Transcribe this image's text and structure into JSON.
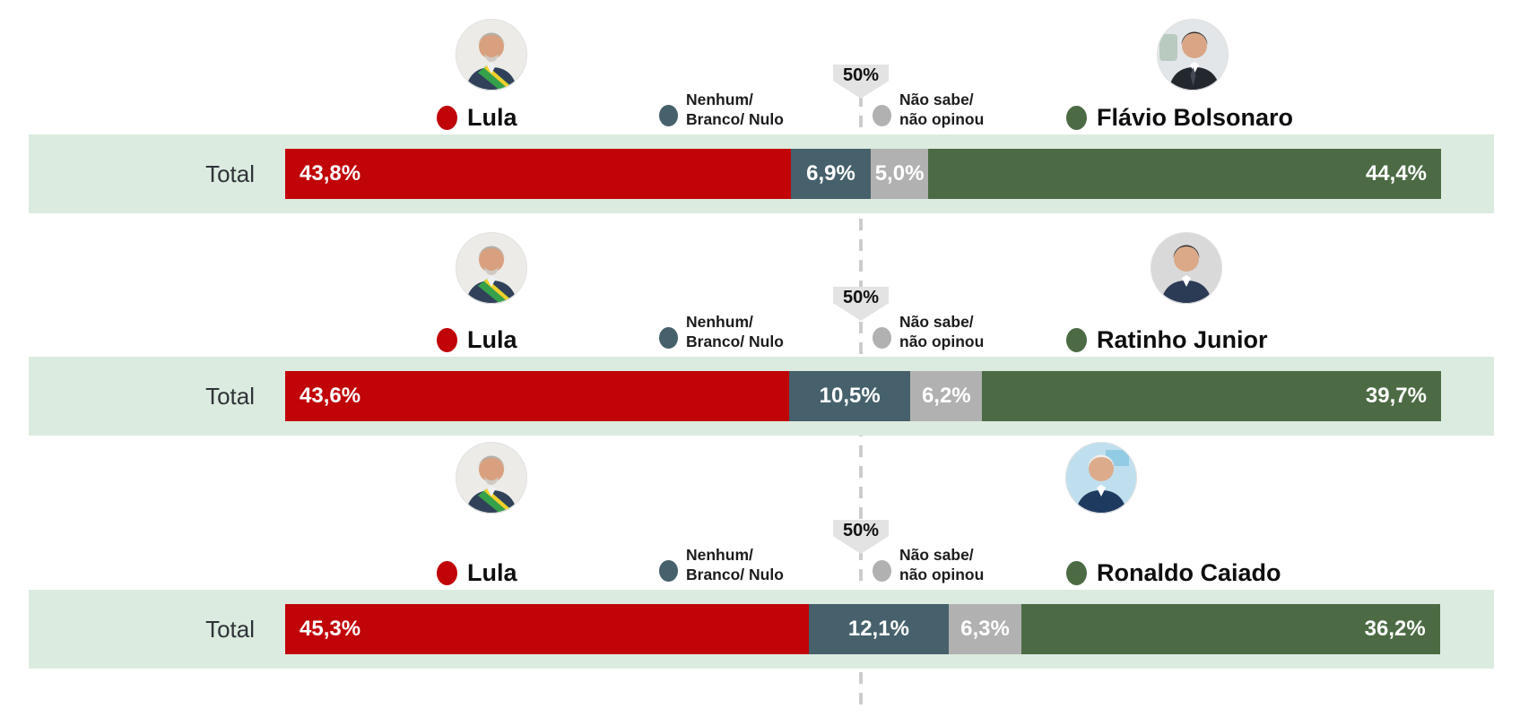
{
  "chart_data": {
    "type": "bar",
    "orientation": "horizontal-stacked",
    "title": "",
    "unit": "%",
    "xlim": [
      0,
      100
    ],
    "row_label": "Total",
    "reference_line": {
      "label": "50%",
      "value": 50
    },
    "legend": {
      "lula": {
        "label": "Lula",
        "color": "#c00408"
      },
      "none_blank_null": {
        "line1": "Nenhum/",
        "line2": "Branco/ Nulo",
        "color": "#46616b"
      },
      "dont_know": {
        "line1": "Não sabe/",
        "line2": "não opinou",
        "color": "#b1b1b1"
      },
      "opponent": {
        "color": "#4c6b44"
      }
    },
    "band_background": "#dcebdf",
    "matchups": [
      {
        "opponent": "Flávio Bolsonaro",
        "values": {
          "lula": 43.8,
          "none_blank_null": 6.9,
          "dont_know": 5.0,
          "opponent": 44.4
        },
        "labels": {
          "lula": "43,8%",
          "none_blank_null": "6,9%",
          "dont_know": "5,0%",
          "opponent": "44,4%"
        }
      },
      {
        "opponent": "Ratinho Junior",
        "values": {
          "lula": 43.6,
          "none_blank_null": 10.5,
          "dont_know": 6.2,
          "opponent": 39.7
        },
        "labels": {
          "lula": "43,6%",
          "none_blank_null": "10,5%",
          "dont_know": "6,2%",
          "opponent": "39,7%"
        }
      },
      {
        "opponent": "Ronaldo Caiado",
        "values": {
          "lula": 45.3,
          "none_blank_null": 12.1,
          "dont_know": 6.3,
          "opponent": 36.2
        },
        "labels": {
          "lula": "45,3%",
          "none_blank_null": "12,1%",
          "dont_know": "6,3%",
          "opponent": "36,2%"
        }
      }
    ],
    "icons": {
      "marker": "fifty-percent-flag",
      "avatars": [
        "lula-avatar",
        "flavio-bolsonaro-avatar",
        "ratinho-junior-avatar",
        "ronaldo-caiado-avatar"
      ]
    }
  }
}
